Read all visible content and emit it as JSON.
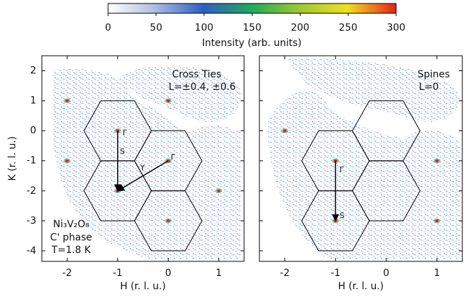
{
  "colorbar": {
    "label": "Intensity (arb. units)",
    "lim": [
      0,
      300
    ],
    "ticks": [
      0,
      50,
      100,
      150,
      200,
      250,
      300
    ]
  },
  "chart_data": [
    {
      "type": "heatmap",
      "xlabel": "H (r. l. u.)",
      "ylabel": "K (r. l. u.)",
      "xlim": [
        -2.5,
        1.5
      ],
      "ylim": [
        -4.35,
        2.5
      ],
      "xticks": [
        -2,
        -1,
        0,
        1
      ],
      "yticks": [
        2,
        1,
        0,
        -1,
        -2,
        -3,
        -4
      ],
      "annotations": [
        "Cross Ties",
        "L=±0.4, ±0.6",
        "Ni₃V₂O₈",
        "C' phase",
        "T=1.8 K"
      ],
      "point_labels": [
        "Γ",
        "S",
        "Y",
        "Γ"
      ]
    },
    {
      "type": "heatmap",
      "xlabel": "H (r. l. u.)",
      "xlim": [
        -2.5,
        1.5
      ],
      "ylim": [
        -4.35,
        2.5
      ],
      "xticks": [
        -2,
        -1,
        0,
        1
      ],
      "yticks": [
        2,
        1,
        0,
        -1,
        -2,
        -3,
        -4
      ],
      "annotations": [
        "Spines",
        "L=0"
      ],
      "point_labels": [
        "Γ",
        "S"
      ]
    }
  ]
}
